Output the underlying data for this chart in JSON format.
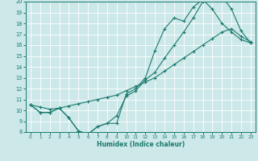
{
  "xlabel": "Humidex (Indice chaleur)",
  "bg_color": "#cce8e8",
  "grid_color": "#ffffff",
  "line_color": "#1a7a6e",
  "xlim": [
    -0.5,
    23.5
  ],
  "ylim": [
    8,
    20
  ],
  "xticks": [
    0,
    1,
    2,
    3,
    4,
    5,
    6,
    7,
    8,
    9,
    10,
    11,
    12,
    13,
    14,
    15,
    16,
    17,
    18,
    19,
    20,
    21,
    22,
    23
  ],
  "yticks": [
    8,
    9,
    10,
    11,
    12,
    13,
    14,
    15,
    16,
    17,
    18,
    19,
    20
  ],
  "line1_x": [
    0,
    1,
    2,
    3,
    4,
    5,
    6,
    7,
    8,
    9,
    10,
    11,
    12,
    13,
    14,
    15,
    16,
    17,
    18,
    19,
    20,
    21,
    22,
    23
  ],
  "line1_y": [
    10.5,
    9.8,
    9.8,
    10.2,
    9.3,
    8.1,
    7.8,
    8.5,
    8.8,
    8.8,
    11.5,
    12.0,
    13.0,
    15.5,
    17.5,
    18.5,
    18.2,
    19.5,
    20.2,
    19.3,
    18.0,
    17.2,
    16.5,
    16.2
  ],
  "line2_x": [
    0,
    1,
    2,
    3,
    4,
    5,
    6,
    7,
    8,
    9,
    10,
    11,
    12,
    13,
    14,
    15,
    16,
    17,
    18,
    19,
    20,
    21,
    22,
    23
  ],
  "line2_y": [
    10.5,
    9.8,
    9.8,
    10.2,
    9.3,
    8.1,
    7.8,
    8.5,
    8.8,
    9.5,
    11.3,
    11.8,
    12.8,
    13.5,
    14.8,
    16.0,
    17.2,
    18.5,
    20.0,
    20.3,
    20.5,
    19.3,
    17.3,
    16.2
  ],
  "line3_x": [
    0,
    1,
    2,
    3,
    4,
    5,
    6,
    7,
    8,
    9,
    10,
    11,
    12,
    13,
    14,
    15,
    16,
    17,
    18,
    19,
    20,
    21,
    22,
    23
  ],
  "line3_y": [
    10.5,
    10.3,
    10.1,
    10.2,
    10.4,
    10.6,
    10.8,
    11.0,
    11.2,
    11.4,
    11.8,
    12.2,
    12.6,
    13.0,
    13.6,
    14.2,
    14.8,
    15.4,
    16.0,
    16.6,
    17.2,
    17.5,
    16.8,
    16.3
  ]
}
